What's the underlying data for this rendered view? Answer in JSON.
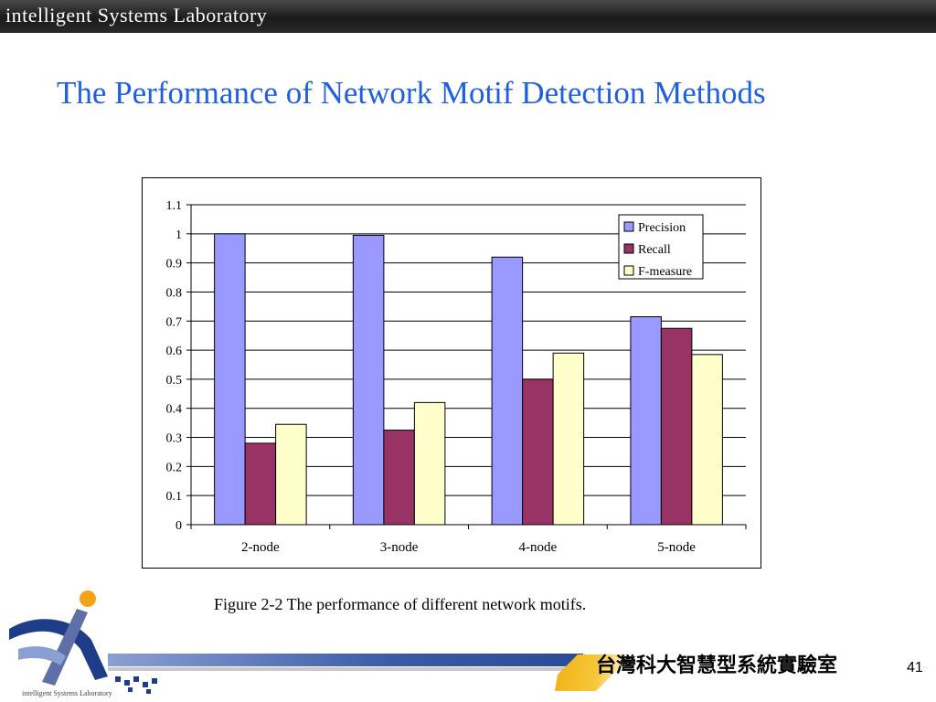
{
  "header": {
    "title": "intelligent Systems Laboratory"
  },
  "slide": {
    "title": "The Performance of Network Motif Detection Methods",
    "caption": "Figure 2-2 The performance of different network motifs.",
    "page_number": "41"
  },
  "footer": {
    "lab_name": "台灣科大智慧型系統實驗室",
    "logo_text": "intelligent Systems Laboratory"
  },
  "chart_data": {
    "type": "bar",
    "categories": [
      "2-node",
      "3-node",
      "4-node",
      "5-node"
    ],
    "series": [
      {
        "name": "Precision",
        "values": [
          1.0,
          0.995,
          0.92,
          0.715
        ],
        "color": "#9999ff"
      },
      {
        "name": "Recall",
        "values": [
          0.28,
          0.325,
          0.5,
          0.675
        ],
        "color": "#993366"
      },
      {
        "name": "F-measure",
        "values": [
          0.345,
          0.42,
          0.59,
          0.585
        ],
        "color": "#ffffcc"
      }
    ],
    "yticks": [
      "0",
      "0.1",
      "0.2",
      "0.3",
      "0.4",
      "0.5",
      "0.6",
      "0.7",
      "0.8",
      "0.9",
      "1",
      "1.1"
    ],
    "ylim": [
      0,
      1.1
    ],
    "grid": true,
    "legend_position": "top-right"
  }
}
